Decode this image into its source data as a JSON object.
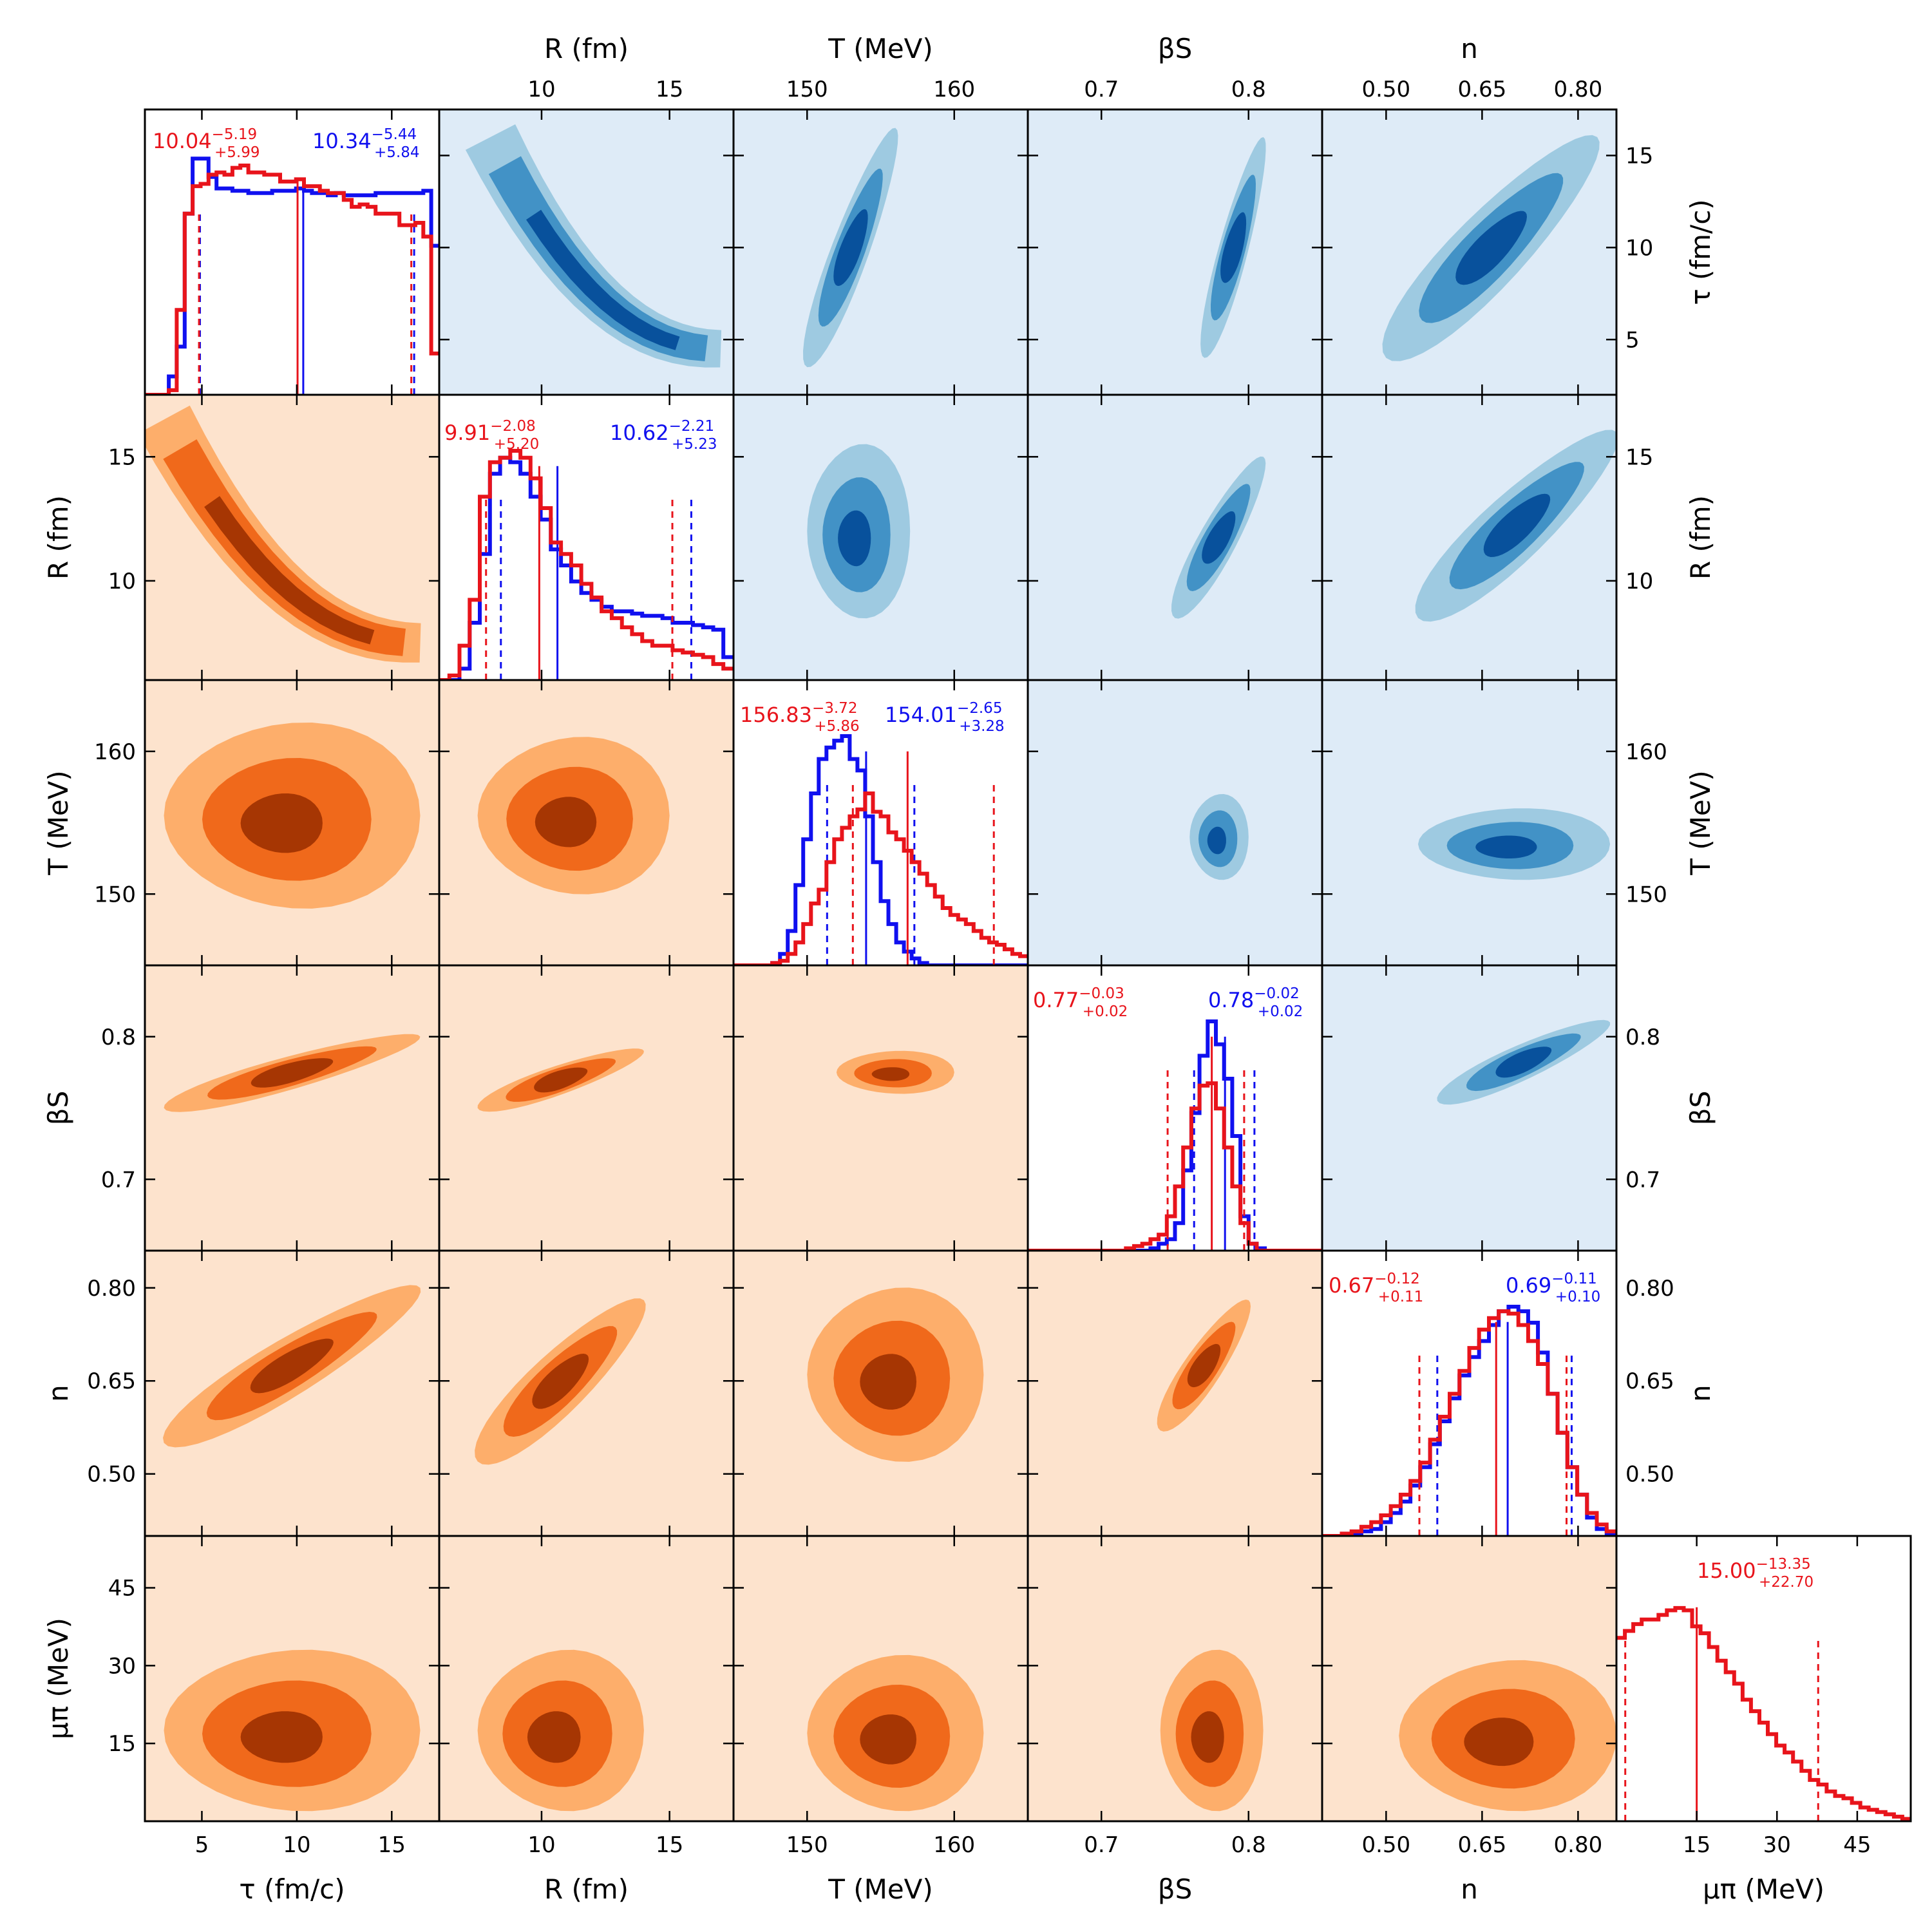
{
  "chart_data": {
    "type": "corner",
    "description_type": "posterior corner plot (upper triangle: blue contours, lower triangle: orange contours, diagonal: 1D histograms)",
    "parameters": [
      {
        "key": "tau",
        "label": "τ (fm/c)",
        "ticks": [
          5,
          10,
          15
        ],
        "range": [
          2,
          17.5
        ]
      },
      {
        "key": "R",
        "label": "R (fm)",
        "ticks": [
          10,
          15
        ],
        "range": [
          6,
          17.5
        ]
      },
      {
        "key": "T",
        "label": "T (MeV)",
        "ticks": [
          150,
          160
        ],
        "range": [
          145,
          165
        ]
      },
      {
        "key": "beta",
        "label": "βS",
        "ticks": [
          0.7,
          0.8
        ],
        "tick_labels": [
          "0.7",
          "0.8"
        ],
        "range": [
          0.65,
          0.85
        ]
      },
      {
        "key": "n",
        "label": "n",
        "ticks": [
          0.5,
          0.65,
          0.8
        ],
        "tick_labels": [
          "0.50",
          "0.65",
          "0.80"
        ],
        "range": [
          0.4,
          0.86
        ]
      },
      {
        "key": "mu",
        "label": "μπ (MeV)",
        "ticks": [
          15,
          30,
          45
        ],
        "range": [
          0,
          55
        ]
      }
    ],
    "series": [
      {
        "name": "red",
        "color": "#e8141b"
      },
      {
        "name": "blue",
        "color": "#1010ef"
      }
    ],
    "diagonal_stats": [
      {
        "red": {
          "median": "10.04",
          "minus": "−5.19",
          "plus": "+5.99",
          "lo": 4.85,
          "med": 10.04,
          "hi": 16.03
        },
        "blue": {
          "median": "10.34",
          "minus": "−5.44",
          "plus": "+5.84",
          "lo": 4.9,
          "med": 10.34,
          "hi": 16.18
        }
      },
      {
        "red": {
          "median": "9.91",
          "minus": "−2.08",
          "plus": "+5.20",
          "lo": 7.83,
          "med": 9.91,
          "hi": 15.11
        },
        "blue": {
          "median": "10.62",
          "minus": "−2.21",
          "plus": "+5.23",
          "lo": 8.41,
          "med": 10.62,
          "hi": 15.85
        }
      },
      {
        "red": {
          "median": "156.83",
          "minus": "−3.72",
          "plus": "+5.86",
          "lo": 153.11,
          "med": 156.83,
          "hi": 162.69
        },
        "blue": {
          "median": "154.01",
          "minus": "−2.65",
          "plus": "+3.28",
          "lo": 151.36,
          "med": 154.01,
          "hi": 157.29
        }
      },
      {
        "red": {
          "median": "0.77",
          "minus": "−0.03",
          "plus": "+0.02",
          "lo": 0.745,
          "med": 0.775,
          "hi": 0.797
        },
        "blue": {
          "median": "0.78",
          "minus": "−0.02",
          "plus": "+0.02",
          "lo": 0.763,
          "med": 0.784,
          "hi": 0.804
        }
      },
      {
        "red": {
          "median": "0.67",
          "minus": "−0.12",
          "plus": "+0.11",
          "lo": 0.552,
          "med": 0.672,
          "hi": 0.782
        },
        "blue": {
          "median": "0.69",
          "minus": "−0.11",
          "plus": "+0.10",
          "lo": 0.58,
          "med": 0.69,
          "hi": 0.79
        }
      },
      {
        "red": {
          "median": "15.00",
          "minus": "−13.35",
          "plus": "+22.70",
          "lo": 1.65,
          "med": 15.0,
          "hi": 37.7
        }
      }
    ],
    "histograms": [
      {
        "red": [
          0.0,
          0.0,
          0.0,
          0.02,
          0.37,
          0.79,
          0.91,
          0.92,
          0.96,
          0.97,
          0.96,
          0.99,
          1.0,
          0.97,
          0.97,
          0.96,
          0.96,
          0.93,
          0.93,
          0.94,
          0.91,
          0.91,
          0.89,
          0.88,
          0.88,
          0.85,
          0.82,
          0.83,
          0.82,
          0.79,
          0.79,
          0.79,
          0.74,
          0.74,
          0.75,
          0.69,
          0.18
        ],
        "blue": [
          0.0,
          0.0,
          0.0,
          0.08,
          0.21,
          0.79,
          1.03,
          1.03,
          0.95,
          0.9,
          0.9,
          0.89,
          0.89,
          0.88,
          0.88,
          0.88,
          0.89,
          0.89,
          0.89,
          0.9,
          0.89,
          0.88,
          0.88,
          0.87,
          0.88,
          0.87,
          0.87,
          0.87,
          0.87,
          0.88,
          0.88,
          0.88,
          0.88,
          0.88,
          0.88,
          0.89,
          0.65
        ]
      },
      {
        "red": [
          0.0,
          0.02,
          0.15,
          0.35,
          0.8,
          0.95,
          0.97,
          1.0,
          0.97,
          0.88,
          0.75,
          0.6,
          0.55,
          0.5,
          0.42,
          0.36,
          0.3,
          0.27,
          0.23,
          0.2,
          0.17,
          0.15,
          0.15,
          0.13,
          0.12,
          0.11,
          0.1,
          0.07,
          0.05
        ],
        "blue": [
          0.0,
          0.0,
          0.05,
          0.25,
          0.55,
          0.9,
          0.97,
          0.95,
          0.9,
          0.8,
          0.7,
          0.57,
          0.5,
          0.43,
          0.38,
          0.35,
          0.32,
          0.3,
          0.3,
          0.29,
          0.28,
          0.28,
          0.27,
          0.25,
          0.25,
          0.24,
          0.23,
          0.22,
          0.1
        ]
      },
      {
        "red": [
          0.0,
          0.0,
          0.0,
          0.0,
          0.0,
          0.01,
          0.02,
          0.05,
          0.1,
          0.18,
          0.27,
          0.33,
          0.45,
          0.55,
          0.6,
          0.65,
          0.68,
          0.75,
          0.67,
          0.65,
          0.58,
          0.55,
          0.5,
          0.45,
          0.4,
          0.35,
          0.3,
          0.25,
          0.22,
          0.2,
          0.18,
          0.15,
          0.12,
          0.1,
          0.09,
          0.07,
          0.05,
          0.04
        ],
        "blue": [
          0.0,
          0.0,
          0.0,
          0.0,
          0.0,
          0.01,
          0.05,
          0.15,
          0.35,
          0.55,
          0.75,
          0.9,
          0.95,
          0.98,
          1.0,
          0.9,
          0.85,
          0.65,
          0.45,
          0.28,
          0.18,
          0.1,
          0.06,
          0.03,
          0.01,
          0.0,
          0.0,
          0.0,
          0.0,
          0.0,
          0.0,
          0.0,
          0.0,
          0.0,
          0.0,
          0.0,
          0.0,
          0.0
        ]
      },
      {
        "red": [
          0.0,
          0.0,
          0.0,
          0.0,
          0.0,
          0.0,
          0.0,
          0.0,
          0.0,
          0.0,
          0.0,
          0.0,
          0.01,
          0.02,
          0.03,
          0.05,
          0.07,
          0.15,
          0.28,
          0.45,
          0.62,
          0.72,
          0.73,
          0.62,
          0.45,
          0.28,
          0.12,
          0.03,
          0.0,
          0.0,
          0.0,
          0.0,
          0.0,
          0.0,
          0.0,
          0.0
        ],
        "blue": [
          0.0,
          0.0,
          0.0,
          0.0,
          0.0,
          0.0,
          0.0,
          0.0,
          0.0,
          0.0,
          0.0,
          0.0,
          0.0,
          0.0,
          0.0,
          0.01,
          0.03,
          0.05,
          0.12,
          0.35,
          0.6,
          0.85,
          1.0,
          0.9,
          0.75,
          0.5,
          0.15,
          0.03,
          0.01,
          0.0,
          0.0,
          0.0,
          0.0,
          0.0,
          0.0,
          0.0
        ]
      },
      {
        "red": [
          0.0,
          0.0,
          0.01,
          0.02,
          0.04,
          0.06,
          0.09,
          0.13,
          0.18,
          0.24,
          0.32,
          0.42,
          0.52,
          0.62,
          0.72,
          0.82,
          0.9,
          0.95,
          0.98,
          0.97,
          0.92,
          0.85,
          0.75,
          0.62,
          0.45,
          0.3,
          0.18,
          0.1,
          0.05,
          0.02
        ],
        "blue": [
          0.0,
          0.0,
          0.0,
          0.01,
          0.02,
          0.03,
          0.06,
          0.1,
          0.15,
          0.22,
          0.3,
          0.4,
          0.5,
          0.6,
          0.7,
          0.78,
          0.85,
          0.92,
          0.98,
          1.0,
          0.98,
          0.93,
          0.8,
          0.62,
          0.45,
          0.3,
          0.18,
          0.08,
          0.03,
          0.01
        ]
      },
      {
        "red": [
          0.8,
          0.83,
          0.86,
          0.88,
          0.88,
          0.9,
          0.92,
          0.93,
          0.92,
          0.85,
          0.82,
          0.76,
          0.7,
          0.65,
          0.6,
          0.53,
          0.48,
          0.43,
          0.38,
          0.33,
          0.3,
          0.26,
          0.22,
          0.18,
          0.16,
          0.13,
          0.11,
          0.1,
          0.08,
          0.06,
          0.05,
          0.04,
          0.03,
          0.02,
          0.01
        ]
      }
    ],
    "contours_2d": [
      {
        "row": 1,
        "col": 0,
        "x": [
          3,
          16.5
        ],
        "y": [
          7.5,
          16.5
        ],
        "shape": "banana",
        "levels": 3
      },
      {
        "row": 2,
        "col": 0,
        "x": [
          3,
          16.5
        ],
        "y": [
          149,
          162
        ],
        "shape": "blob",
        "levels": 3
      },
      {
        "row": 2,
        "col": 1,
        "x": [
          7.5,
          15
        ],
        "y": [
          150,
          161
        ],
        "shape": "blob",
        "levels": 3
      },
      {
        "row": 3,
        "col": 0,
        "x": [
          3,
          16.5
        ],
        "y": [
          0.75,
          0.8
        ],
        "shape": "band",
        "levels": 3
      },
      {
        "row": 3,
        "col": 1,
        "x": [
          7.5,
          14
        ],
        "y": [
          0.75,
          0.79
        ],
        "shape": "band",
        "levels": 3
      },
      {
        "row": 3,
        "col": 2,
        "x": [
          152,
          160
        ],
        "y": [
          0.76,
          0.79
        ],
        "shape": "blob",
        "levels": 3
      },
      {
        "row": 4,
        "col": 0,
        "x": [
          3,
          16.5
        ],
        "y": [
          0.55,
          0.8
        ],
        "shape": "band",
        "levels": 3
      },
      {
        "row": 4,
        "col": 1,
        "x": [
          7.5,
          14
        ],
        "y": [
          0.52,
          0.78
        ],
        "shape": "band",
        "levels": 3
      },
      {
        "row": 4,
        "col": 2,
        "x": [
          150,
          162
        ],
        "y": [
          0.52,
          0.8
        ],
        "shape": "blob",
        "levels": 3
      },
      {
        "row": 4,
        "col": 3,
        "x": [
          0.74,
          0.8
        ],
        "y": [
          0.57,
          0.78
        ],
        "shape": "band",
        "levels": 3
      },
      {
        "row": 5,
        "col": 0,
        "x": [
          3,
          16.5
        ],
        "y": [
          2,
          33
        ],
        "shape": "blob",
        "levels": 3
      },
      {
        "row": 5,
        "col": 1,
        "x": [
          7.5,
          14
        ],
        "y": [
          2,
          33
        ],
        "shape": "blob",
        "levels": 3
      },
      {
        "row": 5,
        "col": 2,
        "x": [
          150,
          162
        ],
        "y": [
          2,
          32
        ],
        "shape": "blob",
        "levels": 3
      },
      {
        "row": 5,
        "col": 3,
        "x": [
          0.74,
          0.81
        ],
        "y": [
          2,
          33
        ],
        "shape": "blob",
        "levels": 3
      },
      {
        "row": 5,
        "col": 4,
        "x": [
          0.52,
          0.86
        ],
        "y": [
          2,
          31
        ],
        "shape": "blob",
        "levels": 3
      },
      {
        "row": 0,
        "col": 1,
        "x": [
          8,
          17
        ],
        "y": [
          4.5,
          16
        ],
        "shape": "banana",
        "levels": 3
      },
      {
        "row": 0,
        "col": 2,
        "x": [
          150,
          156
        ],
        "y": [
          3.5,
          16.5
        ],
        "shape": "band",
        "levels": 3
      },
      {
        "row": 0,
        "col": 3,
        "x": [
          0.77,
          0.81
        ],
        "y": [
          4,
          16
        ],
        "shape": "band",
        "levels": 3
      },
      {
        "row": 0,
        "col": 4,
        "x": [
          0.5,
          0.83
        ],
        "y": [
          4,
          16
        ],
        "shape": "band",
        "levels": 3
      },
      {
        "row": 1,
        "col": 2,
        "x": [
          150,
          157
        ],
        "y": [
          8.5,
          15.5
        ],
        "shape": "blob",
        "levels": 3
      },
      {
        "row": 1,
        "col": 3,
        "x": [
          0.75,
          0.81
        ],
        "y": [
          8.5,
          15
        ],
        "shape": "band",
        "levels": 3
      },
      {
        "row": 1,
        "col": 4,
        "x": [
          0.55,
          0.86
        ],
        "y": [
          8.5,
          16
        ],
        "shape": "band",
        "levels": 3
      },
      {
        "row": 2,
        "col": 3,
        "x": [
          0.76,
          0.8
        ],
        "y": [
          151,
          157
        ],
        "shape": "blob",
        "levels": 3
      },
      {
        "row": 2,
        "col": 4,
        "x": [
          0.55,
          0.85
        ],
        "y": [
          151,
          156
        ],
        "shape": "blob",
        "levels": 3
      },
      {
        "row": 3,
        "col": 4,
        "x": [
          0.58,
          0.85
        ],
        "y": [
          0.755,
          0.81
        ],
        "shape": "band",
        "levels": 3
      }
    ],
    "colors": {
      "orange_bg": "#fde3cd",
      "orange_levels": [
        "#fdae6b",
        "#f0691b",
        "#a63603"
      ],
      "blue_bg": "#deebf7",
      "blue_levels": [
        "#9ecae1",
        "#4292c6",
        "#08519c"
      ]
    }
  }
}
